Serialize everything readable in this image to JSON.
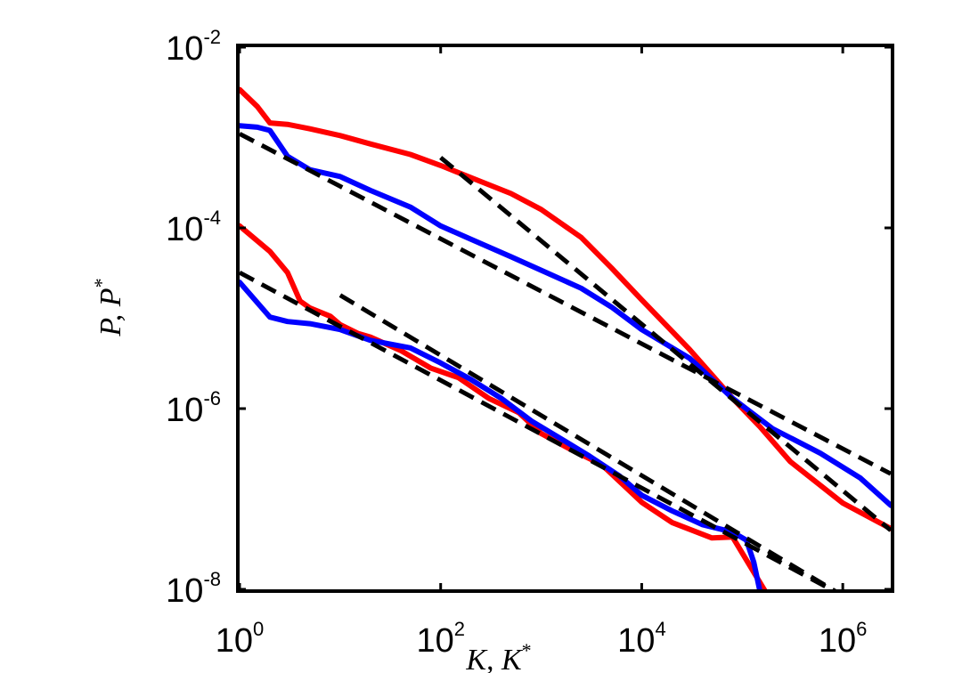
{
  "chart_data": {
    "type": "line",
    "x_scale": "log",
    "y_scale": "log",
    "xlim": [
      1,
      3000000
    ],
    "ylim": [
      1e-08,
      0.01
    ],
    "xlabel": "K, K*",
    "ylabel": "P, P*",
    "x_ticks": [
      {
        "value": 1,
        "base": "10",
        "exp": "0"
      },
      {
        "value": 100,
        "base": "10",
        "exp": "2"
      },
      {
        "value": 10000,
        "base": "10",
        "exp": "4"
      },
      {
        "value": 1000000,
        "base": "10",
        "exp": "6"
      }
    ],
    "y_ticks": [
      {
        "value": 0.01,
        "base": "10",
        "exp": "-2"
      },
      {
        "value": 0.0001,
        "base": "10",
        "exp": "-4"
      },
      {
        "value": 1e-06,
        "base": "10",
        "exp": "-6"
      },
      {
        "value": 1e-08,
        "base": "10",
        "exp": "-8"
      }
    ],
    "grid": false,
    "series": [
      {
        "color": "#ff0000",
        "style": "solid",
        "points": [
          [
            1,
            0.0034
          ],
          [
            1.5,
            0.0022
          ],
          [
            2,
            0.00145
          ],
          [
            3,
            0.0014
          ],
          [
            5,
            0.00125
          ],
          [
            10,
            0.00105
          ],
          [
            20,
            0.00085
          ],
          [
            50,
            0.00065
          ],
          [
            100,
            0.00049
          ],
          [
            200,
            0.00036
          ],
          [
            500,
            0.00024
          ],
          [
            1000,
            0.00016
          ],
          [
            2500,
            7.85e-05
          ],
          [
            5000,
            3.6e-05
          ],
          [
            10000,
            1.6e-05
          ],
          [
            30000,
            4.5e-06
          ],
          [
            80000,
            1.3e-06
          ],
          [
            150000,
            6.3e-07
          ],
          [
            300000,
            2.6e-07
          ],
          [
            1000000,
            9e-08
          ],
          [
            3000000,
            4.7e-08
          ]
        ]
      },
      {
        "color": "#0000ff",
        "style": "solid",
        "points": [
          [
            1,
            0.00135
          ],
          [
            1.5,
            0.0013
          ],
          [
            2,
            0.0012
          ],
          [
            3,
            0.00062
          ],
          [
            5,
            0.00044
          ],
          [
            10,
            0.00037
          ],
          [
            20,
            0.00026
          ],
          [
            50,
            0.00017
          ],
          [
            100,
            0.000105
          ],
          [
            200,
            7.5e-05
          ],
          [
            500,
            4.8e-05
          ],
          [
            1000,
            3.4e-05
          ],
          [
            2500,
            2.15e-05
          ],
          [
            5000,
            1.33e-05
          ],
          [
            10000,
            7.5e-06
          ],
          [
            30000,
            3.6e-06
          ],
          [
            80000,
            1.3e-06
          ],
          [
            200000,
            6e-07
          ],
          [
            600000,
            3.2e-07
          ],
          [
            1500000,
            1.7e-07
          ],
          [
            3000000,
            8.5e-08
          ]
        ]
      },
      {
        "color": "#ff0000",
        "style": "solid",
        "points": [
          [
            1,
            0.000105
          ],
          [
            2,
            5.5e-05
          ],
          [
            3,
            3.2e-05
          ],
          [
            4,
            1.55e-05
          ],
          [
            5,
            1.3e-05
          ],
          [
            8,
            1.05e-05
          ],
          [
            10,
            8.5e-06
          ],
          [
            15,
            6.8e-06
          ],
          [
            20,
            6.2e-06
          ],
          [
            40,
            4.4e-06
          ],
          [
            80,
            2.8e-06
          ],
          [
            150,
            2.2e-06
          ],
          [
            300,
            1.3e-06
          ],
          [
            600,
            9e-07
          ],
          [
            1000,
            5.3e-07
          ],
          [
            2000,
            3.5e-07
          ],
          [
            4000,
            2.4e-07
          ],
          [
            10000,
            9.2e-08
          ],
          [
            20000,
            5.5e-08
          ],
          [
            50000,
            3.7e-08
          ],
          [
            80000,
            3.8e-08
          ],
          [
            120000,
            1.8e-08
          ],
          [
            180000,
            8.5e-09
          ]
        ]
      },
      {
        "color": "#0000ff",
        "style": "solid",
        "points": [
          [
            1,
            2.5e-05
          ],
          [
            2,
            1.03e-05
          ],
          [
            3,
            9.2e-06
          ],
          [
            5,
            8.7e-06
          ],
          [
            10,
            7.5e-06
          ],
          [
            20,
            5.7e-06
          ],
          [
            50,
            4.7e-06
          ],
          [
            100,
            3.2e-06
          ],
          [
            200,
            2.1e-06
          ],
          [
            400,
            1.3e-06
          ],
          [
            800,
            7.3e-07
          ],
          [
            1500,
            4.8e-07
          ],
          [
            3000,
            3e-07
          ],
          [
            6000,
            1.8e-07
          ],
          [
            10000,
            1.1e-07
          ],
          [
            20000,
            7.4e-08
          ],
          [
            40000,
            5.2e-08
          ],
          [
            80000,
            4.3e-08
          ],
          [
            110000,
            3.5e-08
          ],
          [
            130000,
            2e-08
          ],
          [
            150000,
            9.5e-09
          ]
        ]
      },
      {
        "color": "#000000",
        "style": "dashed",
        "points": [
          [
            1,
            0.0011
          ],
          [
            3000000,
            1.9e-07
          ]
        ]
      },
      {
        "color": "#000000",
        "style": "dashed",
        "points": [
          [
            100,
            0.0006
          ],
          [
            3000000,
            4.5e-08
          ]
        ]
      },
      {
        "color": "#000000",
        "style": "dashed",
        "points": [
          [
            1,
            3.2e-05
          ],
          [
            1000000,
            8.5e-09
          ]
        ]
      },
      {
        "color": "#000000",
        "style": "dashed",
        "points": [
          [
            10,
            1.8e-05
          ],
          [
            1000000,
            8.5e-09
          ]
        ]
      }
    ]
  }
}
